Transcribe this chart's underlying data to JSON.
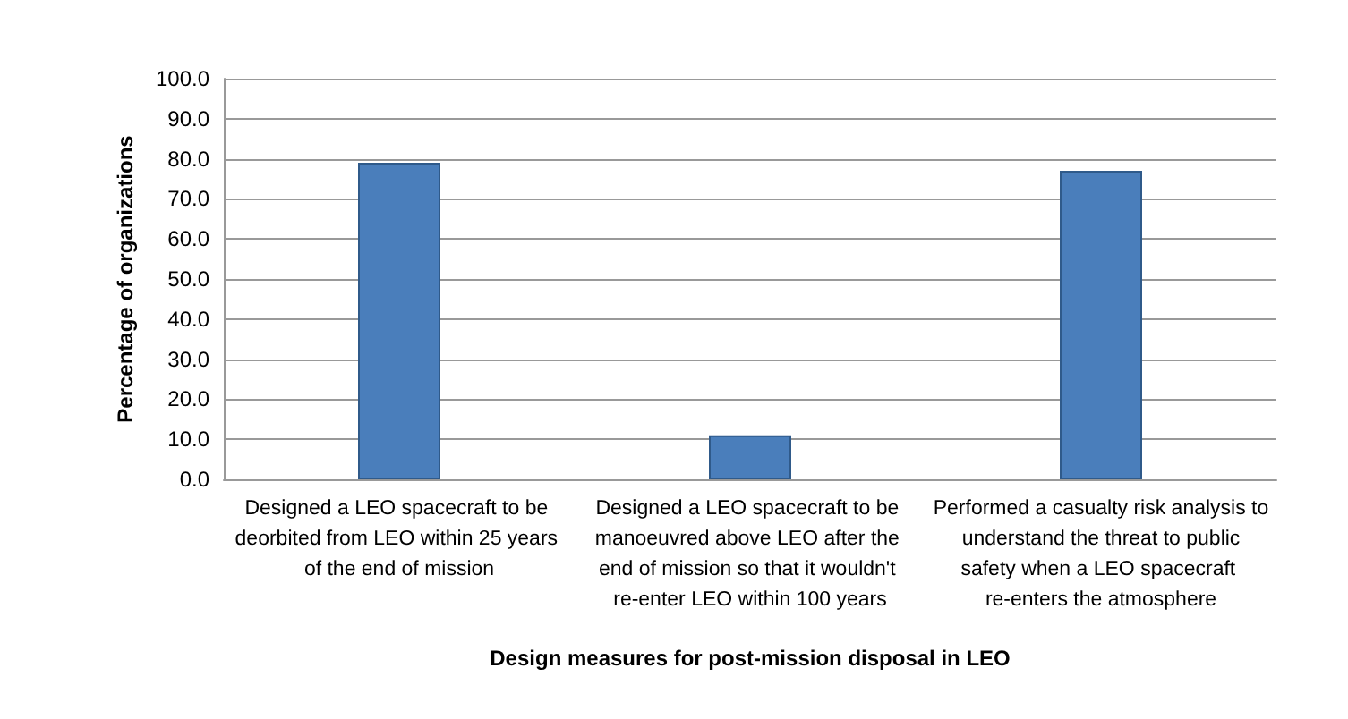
{
  "chart_data": {
    "type": "bar",
    "xlabel": "Design measures for post-mission disposal in LEO",
    "ylabel": "Percentage of organizations",
    "categories": [
      "Designed a LEO spacecraft to be deorbited from LEO within 25 years of the end of mission",
      "Designed a LEO spacecraft to be manoeuvred above LEO after the end of mission so that it wouldn't re-enter LEO within 100 years",
      "Performed a casualty risk analysis to understand the threat to public safety when a LEO spacecraft re-enters the atmosphere"
    ],
    "values": [
      79,
      11,
      77
    ],
    "color": "#4a7ebb",
    "ylim": [
      0,
      100
    ],
    "yticks": [
      {
        "value": 0,
        "label": "0.0"
      },
      {
        "value": 10,
        "label": "10.0"
      },
      {
        "value": 20,
        "label": "20.0"
      },
      {
        "value": 30,
        "label": "30.0"
      },
      {
        "value": 40,
        "label": "40.0"
      },
      {
        "value": 50,
        "label": "50.0"
      },
      {
        "value": 60,
        "label": "60.0"
      },
      {
        "value": 70,
        "label": "70.0"
      },
      {
        "value": 80,
        "label": "80.0"
      },
      {
        "value": 90,
        "label": "90.0"
      },
      {
        "value": 100,
        "label": "100.0"
      }
    ],
    "grid": true
  }
}
